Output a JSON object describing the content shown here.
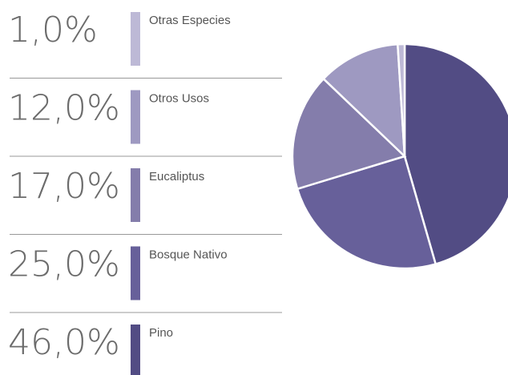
{
  "chart_data": {
    "type": "pie",
    "categories": [
      "Otras Especies",
      "Otros Usos",
      "Eucaliptus",
      "Bosque Nativo",
      "Pino"
    ],
    "values": [
      1,
      12,
      17,
      25,
      46
    ],
    "value_labels": [
      "1,0%",
      "12,0%",
      "17,0%",
      "25,0%",
      "46,0%"
    ],
    "colors": [
      "#bdb9d6",
      "#9e99c1",
      "#847dab",
      "#67609a",
      "#524c84"
    ]
  }
}
